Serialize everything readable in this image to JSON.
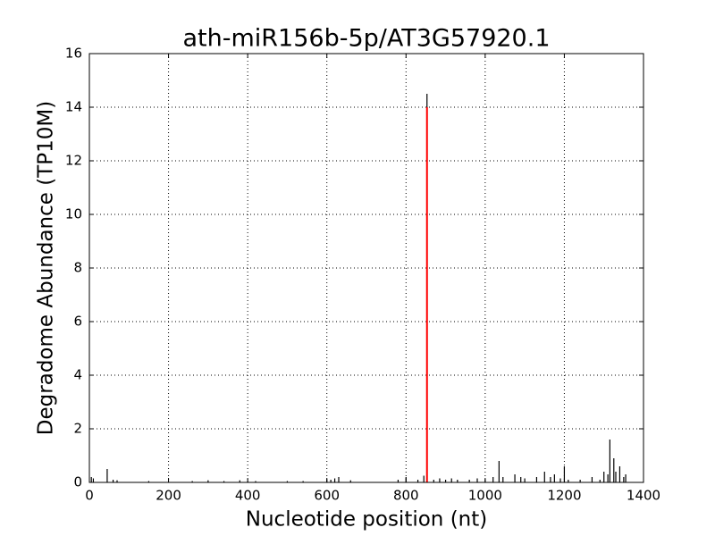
{
  "chart_data": {
    "type": "spike",
    "title": "ath-miR156b-5p/AT3G57920.1",
    "x_label": "Nucleotide position (nt)",
    "y_label": "Degradome Abundance (TP10M)",
    "xlim": [
      0,
      1400
    ],
    "xticks": [
      0,
      200,
      400,
      600,
      800,
      1000,
      1200,
      1400
    ],
    "ylim": [
      0,
      16
    ],
    "yticks": [
      0,
      2,
      4,
      6,
      8,
      10,
      12,
      14,
      16
    ],
    "grid": true,
    "series": [
      {
        "color": "#000000",
        "x": [
          5,
          10,
          45,
          60,
          70,
          150,
          260,
          300,
          340,
          380,
          400,
          420,
          500,
          540,
          600,
          610,
          620,
          630,
          660,
          780,
          800,
          830,
          845,
          853,
          870,
          885,
          900,
          915,
          930,
          960,
          980,
          1000,
          1020,
          1035,
          1045,
          1075,
          1090,
          1100,
          1130,
          1150,
          1165,
          1175,
          1190,
          1200,
          1210,
          1240,
          1270,
          1290,
          1300,
          1310,
          1315,
          1325,
          1330,
          1340,
          1350,
          1355
        ],
        "values": [
          0.2,
          0.15,
          0.5,
          0.1,
          0.08,
          0.05,
          0.05,
          0.08,
          0.05,
          0.08,
          0.05,
          0.05,
          0.05,
          0.05,
          0.1,
          0.1,
          0.15,
          0.2,
          0.08,
          0.1,
          0.2,
          0.1,
          0.25,
          14.5,
          0.1,
          0.15,
          0.1,
          0.15,
          0.1,
          0.1,
          0.15,
          0.1,
          0.2,
          0.8,
          0.2,
          0.3,
          0.2,
          0.15,
          0.2,
          0.4,
          0.2,
          0.3,
          0.15,
          0.6,
          0.1,
          0.1,
          0.2,
          0.1,
          0.4,
          0.3,
          1.6,
          0.9,
          0.4,
          0.6,
          0.2,
          0.3
        ]
      },
      {
        "color": "#ff0000",
        "x": [
          853
        ],
        "values": [
          14
        ]
      }
    ]
  }
}
